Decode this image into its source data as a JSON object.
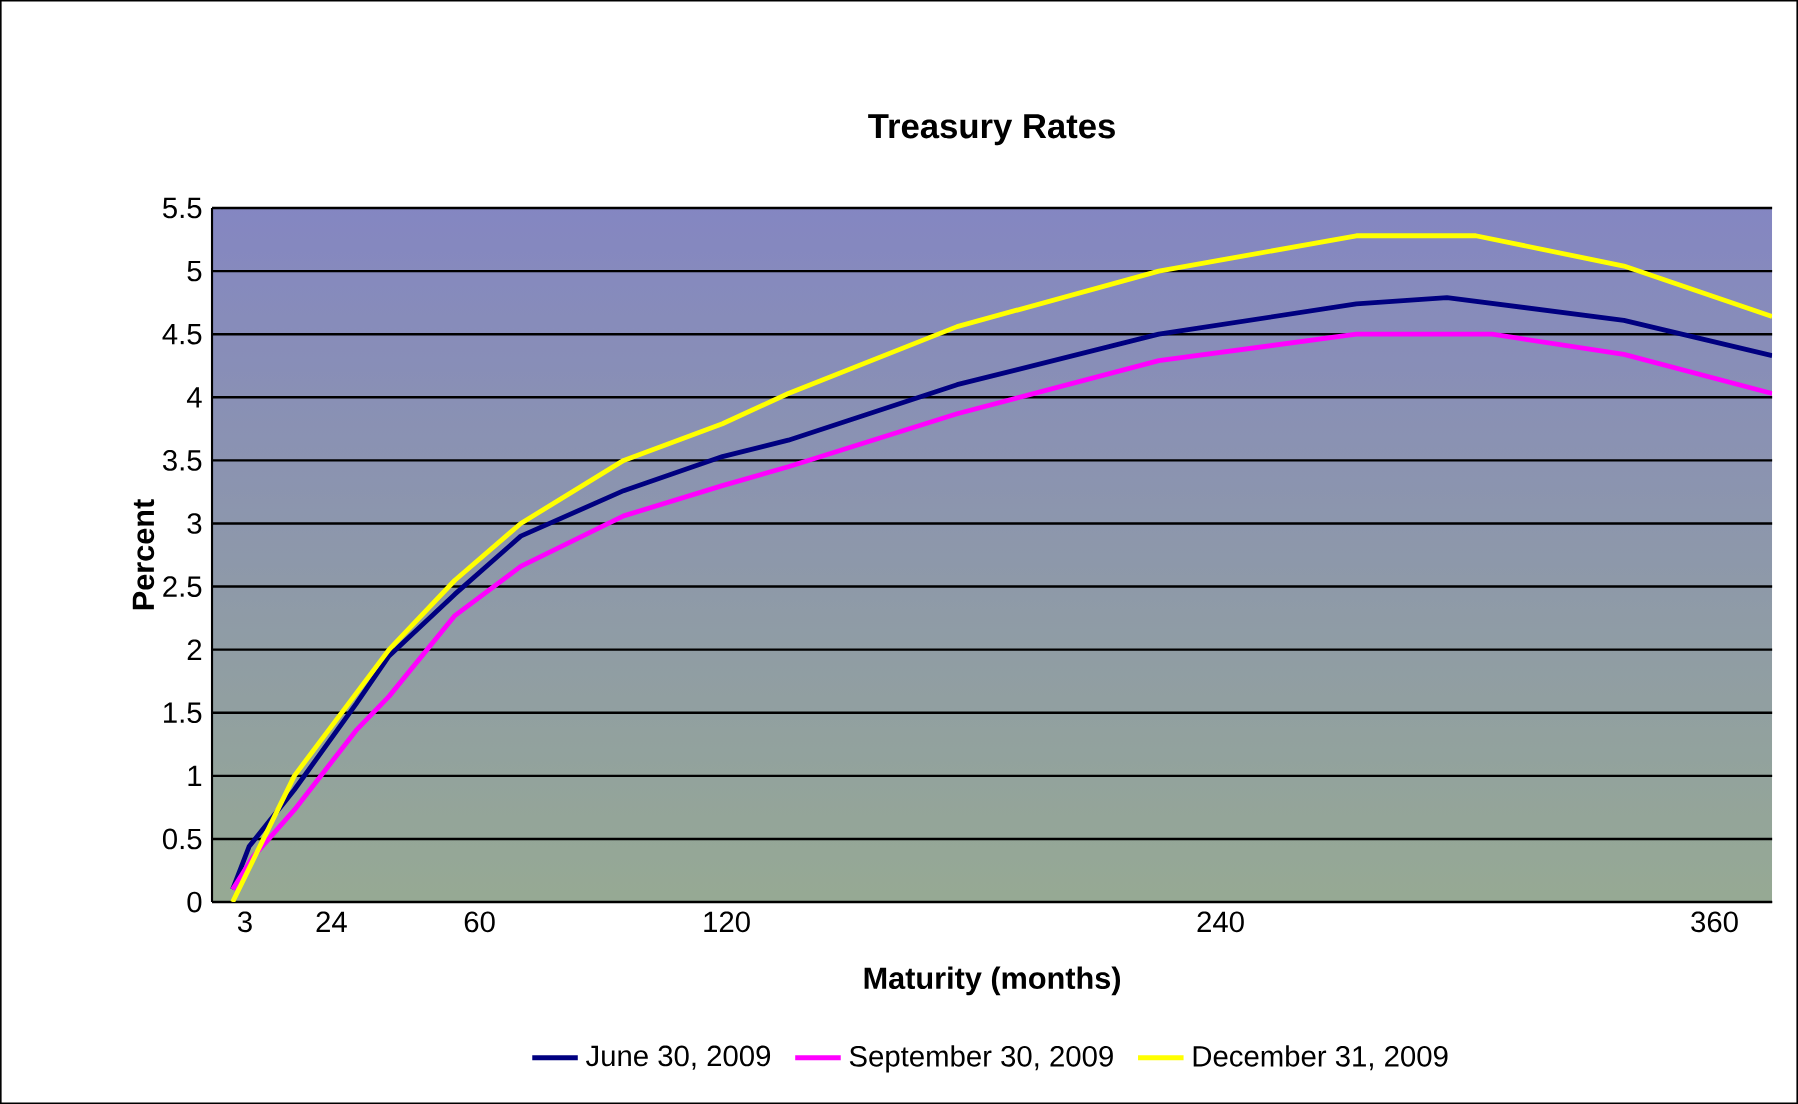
{
  "chart_data": {
    "type": "line",
    "title": "Treasury Rates",
    "xlabel": "Maturity (months)",
    "ylabel": "Percent",
    "xlim": [
      -5,
      374
    ],
    "xticks": [
      3,
      24,
      60,
      120,
      240,
      360
    ],
    "ylim": [
      0,
      5.5
    ],
    "yticks": [
      0,
      0.5,
      1,
      1.5,
      2,
      2.5,
      3,
      3.5,
      4,
      4.5,
      5,
      5.5
    ],
    "grid": "y",
    "legend": "bottom",
    "marker": "none",
    "line_style": "solid",
    "series": [
      {
        "name": "June 30, 2009",
        "color": "#000080",
        "x": [
          0,
          4,
          15,
          30,
          38,
          54,
          70,
          95,
          119,
          135,
          176,
          225,
          273,
          295,
          338,
          374
        ],
        "values": [
          0.1,
          0.44,
          0.89,
          1.57,
          1.95,
          2.44,
          2.9,
          3.26,
          3.53,
          3.66,
          4.1,
          4.5,
          4.74,
          4.79,
          4.61,
          4.33
        ]
      },
      {
        "name": "September 30, 2009",
        "color": "#ff00ff",
        "x": [
          0,
          5,
          15,
          30,
          38,
          54,
          70,
          95,
          119,
          135,
          176,
          225,
          273,
          306,
          338,
          374
        ],
        "values": [
          0.1,
          0.36,
          0.73,
          1.36,
          1.63,
          2.27,
          2.66,
          3.06,
          3.3,
          3.45,
          3.87,
          4.29,
          4.5,
          4.5,
          4.34,
          4.03
        ]
      },
      {
        "name": "December 31, 2009",
        "color": "#ffff00",
        "x": [
          0,
          15,
          38,
          54,
          70,
          95,
          119,
          135,
          176,
          225,
          273,
          302,
          338,
          374
        ],
        "values": [
          0,
          1.0,
          2.0,
          2.55,
          3.0,
          3.5,
          3.79,
          4.03,
          4.56,
          5.0,
          5.28,
          5.28,
          5.04,
          4.64
        ]
      }
    ]
  }
}
